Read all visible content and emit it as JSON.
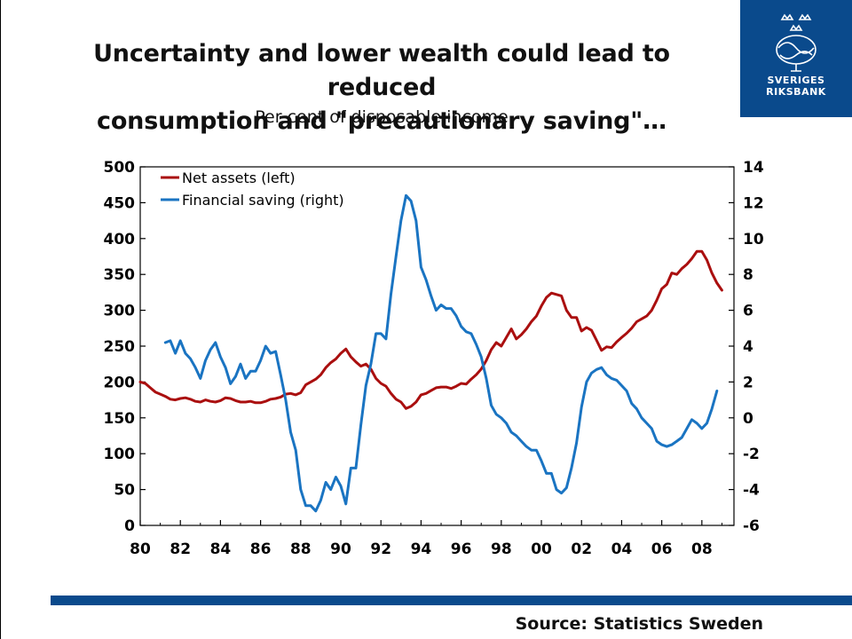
{
  "header": {
    "title_line1": "Uncertainty and lower wealth could lead to reduced",
    "title_line2": "consumption and \"precautionary saving\"…",
    "subtitle": "Per cent of disposable income"
  },
  "logo": {
    "line1": "SVERIGES",
    "line2": "RIKSBANK",
    "icon": "riksbank-crest-icon"
  },
  "footer": {
    "source": "Source: Statistics Sweden"
  },
  "colors": {
    "net_assets": "#aa0f0f",
    "financial_saving": "#1a74c2",
    "brand": "#0a4a8c"
  },
  "chart_data": {
    "type": "line",
    "title": "Uncertainty and lower wealth could lead to reduced consumption and \"precautionary saving\"…",
    "subtitle": "Per cent of disposable income",
    "x_ticks": [
      "80",
      "82",
      "84",
      "86",
      "88",
      "90",
      "92",
      "94",
      "96",
      "98",
      "00",
      "02",
      "04",
      "06",
      "08"
    ],
    "xlim": [
      1980,
      2009.6
    ],
    "y_left": {
      "ticks": [
        0,
        50,
        100,
        150,
        200,
        250,
        300,
        350,
        400,
        450,
        500
      ],
      "ylim": [
        0,
        500
      ]
    },
    "y_right": {
      "ticks": [
        -6,
        -4,
        -2,
        0,
        2,
        4,
        6,
        8,
        10,
        12,
        14
      ],
      "ylim": [
        -6,
        14
      ]
    },
    "legend": {
      "position": "top-left"
    },
    "series": [
      {
        "name": "Net assets (left)",
        "axis": "left",
        "points": [
          [
            1980,
            200
          ],
          [
            1980.25,
            198
          ],
          [
            1980.5,
            192
          ],
          [
            1980.75,
            186
          ],
          [
            1981,
            183
          ],
          [
            1981.25,
            180
          ],
          [
            1981.5,
            176
          ],
          [
            1981.75,
            175
          ],
          [
            1982,
            177
          ],
          [
            1982.25,
            178
          ],
          [
            1982.5,
            176
          ],
          [
            1982.75,
            173
          ],
          [
            1983,
            172
          ],
          [
            1983.25,
            175
          ],
          [
            1983.5,
            173
          ],
          [
            1983.75,
            172
          ],
          [
            1984,
            174
          ],
          [
            1984.25,
            178
          ],
          [
            1984.5,
            177
          ],
          [
            1984.75,
            174
          ],
          [
            1985,
            172
          ],
          [
            1985.25,
            172
          ],
          [
            1985.5,
            173
          ],
          [
            1985.75,
            171
          ],
          [
            1986,
            171
          ],
          [
            1986.25,
            173
          ],
          [
            1986.5,
            176
          ],
          [
            1986.75,
            177
          ],
          [
            1987,
            179
          ],
          [
            1987.25,
            183
          ],
          [
            1987.5,
            184
          ],
          [
            1987.75,
            182
          ],
          [
            1988,
            185
          ],
          [
            1988.25,
            196
          ],
          [
            1988.5,
            200
          ],
          [
            1988.75,
            204
          ],
          [
            1989,
            210
          ],
          [
            1989.25,
            220
          ],
          [
            1989.5,
            227
          ],
          [
            1989.75,
            232
          ],
          [
            1990,
            240
          ],
          [
            1990.25,
            246
          ],
          [
            1990.5,
            235
          ],
          [
            1990.75,
            228
          ],
          [
            1991,
            222
          ],
          [
            1991.25,
            225
          ],
          [
            1991.5,
            218
          ],
          [
            1991.75,
            205
          ],
          [
            1992,
            198
          ],
          [
            1992.25,
            194
          ],
          [
            1992.5,
            184
          ],
          [
            1992.75,
            176
          ],
          [
            1993,
            172
          ],
          [
            1993.25,
            163
          ],
          [
            1993.5,
            166
          ],
          [
            1993.75,
            172
          ],
          [
            1994,
            182
          ],
          [
            1994.25,
            184
          ],
          [
            1994.5,
            188
          ],
          [
            1994.75,
            192
          ],
          [
            1995,
            193
          ],
          [
            1995.25,
            193
          ],
          [
            1995.5,
            191
          ],
          [
            1995.75,
            194
          ],
          [
            1996,
            198
          ],
          [
            1996.25,
            197
          ],
          [
            1996.5,
            204
          ],
          [
            1996.75,
            210
          ],
          [
            1997,
            218
          ],
          [
            1997.25,
            230
          ],
          [
            1997.5,
            245
          ],
          [
            1997.75,
            255
          ],
          [
            1998,
            250
          ],
          [
            1998.25,
            262
          ],
          [
            1998.5,
            274
          ],
          [
            1998.75,
            260
          ],
          [
            1999,
            266
          ],
          [
            1999.25,
            274
          ],
          [
            1999.5,
            284
          ],
          [
            1999.75,
            292
          ],
          [
            2000,
            306
          ],
          [
            2000.25,
            318
          ],
          [
            2000.5,
            324
          ],
          [
            2000.75,
            322
          ],
          [
            2001,
            320
          ],
          [
            2001.25,
            300
          ],
          [
            2001.5,
            290
          ],
          [
            2001.75,
            290
          ],
          [
            2002,
            271
          ],
          [
            2002.25,
            276
          ],
          [
            2002.5,
            272
          ],
          [
            2002.75,
            258
          ],
          [
            2003,
            244
          ],
          [
            2003.25,
            249
          ],
          [
            2003.5,
            248
          ],
          [
            2003.75,
            256
          ],
          [
            2004,
            262
          ],
          [
            2004.25,
            268
          ],
          [
            2004.5,
            275
          ],
          [
            2004.75,
            284
          ],
          [
            2005,
            288
          ],
          [
            2005.25,
            292
          ],
          [
            2005.5,
            300
          ],
          [
            2005.75,
            314
          ],
          [
            2006,
            330
          ],
          [
            2006.25,
            336
          ],
          [
            2006.5,
            352
          ],
          [
            2006.75,
            350
          ],
          [
            2007,
            358
          ],
          [
            2007.25,
            364
          ],
          [
            2007.5,
            372
          ],
          [
            2007.75,
            382
          ],
          [
            2008,
            382
          ],
          [
            2008.25,
            370
          ],
          [
            2008.5,
            352
          ],
          [
            2008.75,
            338
          ],
          [
            2009,
            328
          ]
        ]
      },
      {
        "name": "Financial saving (right)",
        "axis": "right",
        "points": [
          [
            1981.25,
            4.2
          ],
          [
            1981.5,
            4.3
          ],
          [
            1981.75,
            3.6
          ],
          [
            1982,
            4.3
          ],
          [
            1982.25,
            3.6
          ],
          [
            1982.5,
            3.3
          ],
          [
            1982.75,
            2.8
          ],
          [
            1983,
            2.2
          ],
          [
            1983.25,
            3.2
          ],
          [
            1983.5,
            3.8
          ],
          [
            1983.75,
            4.2
          ],
          [
            1984,
            3.4
          ],
          [
            1984.25,
            2.8
          ],
          [
            1984.5,
            1.9
          ],
          [
            1984.75,
            2.3
          ],
          [
            1985,
            3.0
          ],
          [
            1985.25,
            2.2
          ],
          [
            1985.5,
            2.6
          ],
          [
            1985.75,
            2.6
          ],
          [
            1986,
            3.2
          ],
          [
            1986.25,
            4.0
          ],
          [
            1986.5,
            3.6
          ],
          [
            1986.75,
            3.7
          ],
          [
            1987,
            2.4
          ],
          [
            1987.25,
            1.0
          ],
          [
            1987.5,
            -0.8
          ],
          [
            1987.75,
            -1.8
          ],
          [
            1988,
            -4.0
          ],
          [
            1988.25,
            -4.9
          ],
          [
            1988.5,
            -4.9
          ],
          [
            1988.75,
            -5.2
          ],
          [
            1989,
            -4.6
          ],
          [
            1989.25,
            -3.6
          ],
          [
            1989.5,
            -4.0
          ],
          [
            1989.75,
            -3.3
          ],
          [
            1990,
            -3.8
          ],
          [
            1990.25,
            -4.8
          ],
          [
            1990.5,
            -2.8
          ],
          [
            1990.75,
            -2.8
          ],
          [
            1991,
            -0.4
          ],
          [
            1991.25,
            1.8
          ],
          [
            1991.5,
            3.0
          ],
          [
            1991.75,
            4.7
          ],
          [
            1992,
            4.7
          ],
          [
            1992.25,
            4.4
          ],
          [
            1992.5,
            6.9
          ],
          [
            1992.75,
            9.0
          ],
          [
            1993,
            11.0
          ],
          [
            1993.25,
            12.4
          ],
          [
            1993.5,
            12.1
          ],
          [
            1993.75,
            11.0
          ],
          [
            1994,
            8.4
          ],
          [
            1994.25,
            7.7
          ],
          [
            1994.5,
            6.8
          ],
          [
            1994.75,
            6.0
          ],
          [
            1995,
            6.3
          ],
          [
            1995.25,
            6.1
          ],
          [
            1995.5,
            6.1
          ],
          [
            1995.75,
            5.7
          ],
          [
            1996,
            5.1
          ],
          [
            1996.25,
            4.8
          ],
          [
            1996.5,
            4.7
          ],
          [
            1996.75,
            4.1
          ],
          [
            1997,
            3.4
          ],
          [
            1997.25,
            2.2
          ],
          [
            1997.5,
            0.7
          ],
          [
            1997.75,
            0.2
          ],
          [
            1998,
            0.0
          ],
          [
            1998.25,
            -0.3
          ],
          [
            1998.5,
            -0.8
          ],
          [
            1998.75,
            -1.0
          ],
          [
            1999,
            -1.3
          ],
          [
            1999.25,
            -1.6
          ],
          [
            1999.5,
            -1.8
          ],
          [
            1999.75,
            -1.8
          ],
          [
            2000,
            -2.4
          ],
          [
            2000.25,
            -3.1
          ],
          [
            2000.5,
            -3.1
          ],
          [
            2000.75,
            -4.0
          ],
          [
            2001,
            -4.2
          ],
          [
            2001.25,
            -3.9
          ],
          [
            2001.5,
            -2.8
          ],
          [
            2001.75,
            -1.4
          ],
          [
            2002,
            0.6
          ],
          [
            2002.25,
            2.0
          ],
          [
            2002.5,
            2.5
          ],
          [
            2002.75,
            2.7
          ],
          [
            2003,
            2.8
          ],
          [
            2003.25,
            2.4
          ],
          [
            2003.5,
            2.2
          ],
          [
            2003.75,
            2.1
          ],
          [
            2004,
            1.8
          ],
          [
            2004.25,
            1.5
          ],
          [
            2004.5,
            0.8
          ],
          [
            2004.75,
            0.5
          ],
          [
            2005,
            0.0
          ],
          [
            2005.25,
            -0.3
          ],
          [
            2005.5,
            -0.6
          ],
          [
            2005.75,
            -1.3
          ],
          [
            2006,
            -1.5
          ],
          [
            2006.25,
            -1.6
          ],
          [
            2006.5,
            -1.5
          ],
          [
            2006.75,
            -1.3
          ],
          [
            2007,
            -1.1
          ],
          [
            2007.25,
            -0.6
          ],
          [
            2007.5,
            -0.1
          ],
          [
            2007.75,
            -0.3
          ],
          [
            2008,
            -0.6
          ],
          [
            2008.25,
            -0.3
          ],
          [
            2008.5,
            0.5
          ],
          [
            2008.75,
            1.5
          ]
        ]
      }
    ]
  }
}
